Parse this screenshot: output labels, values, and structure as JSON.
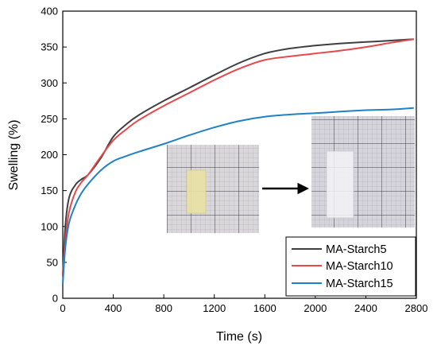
{
  "chart_data": {
    "type": "line",
    "xlabel": "Time (s)",
    "ylabel": "Swelling (%)",
    "xlim": [
      0,
      2800
    ],
    "ylim": [
      0,
      400
    ],
    "xticks": [
      0,
      400,
      800,
      1200,
      1600,
      2000,
      2400,
      2800
    ],
    "yticks": [
      0,
      50,
      100,
      150,
      200,
      250,
      300,
      350,
      400
    ],
    "grid": false,
    "legend_position": "bottom-right",
    "series": [
      {
        "name": "MA-Starch5",
        "color": "#3f3f3f",
        "x": [
          0,
          20,
          50,
          100,
          150,
          200,
          300,
          400,
          500,
          600,
          800,
          1000,
          1200,
          1400,
          1600,
          1800,
          2000,
          2200,
          2400,
          2600,
          2780
        ],
        "y": [
          30,
          100,
          140,
          158,
          166,
          172,
          195,
          225,
          242,
          255,
          275,
          293,
          311,
          328,
          341,
          348,
          352,
          355,
          357,
          359,
          361
        ]
      },
      {
        "name": "MA-Starch10",
        "color": "#e8474b",
        "x": [
          0,
          20,
          50,
          100,
          150,
          200,
          300,
          400,
          500,
          600,
          800,
          1000,
          1200,
          1400,
          1600,
          1800,
          2000,
          2200,
          2400,
          2600,
          2780
        ],
        "y": [
          30,
          80,
          120,
          148,
          162,
          172,
          197,
          220,
          235,
          248,
          268,
          286,
          304,
          320,
          332,
          337,
          341,
          345,
          350,
          356,
          361
        ]
      },
      {
        "name": "MA-Starch15",
        "color": "#1f82c6",
        "x": [
          0,
          20,
          50,
          100,
          150,
          200,
          300,
          400,
          500,
          600,
          800,
          1000,
          1200,
          1400,
          1600,
          1800,
          2000,
          2200,
          2400,
          2600,
          2780
        ],
        "y": [
          20,
          70,
          105,
          130,
          147,
          159,
          178,
          191,
          198,
          204,
          215,
          227,
          238,
          247,
          253,
          256,
          258,
          260,
          262,
          263,
          265
        ]
      }
    ]
  },
  "inset": {
    "photo_before": "sample-before-swelling",
    "photo_after": "sample-after-swelling",
    "arrow": "right-arrow"
  }
}
